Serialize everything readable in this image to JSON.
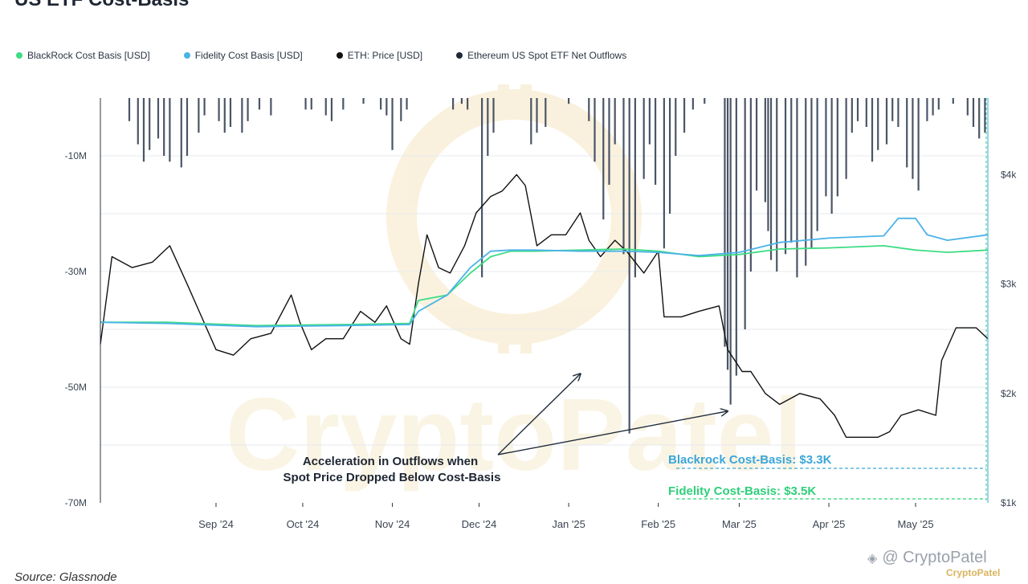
{
  "title": "US ETF Cost-Basis",
  "source": "Source: Glassnode",
  "watermark": {
    "center_text": "CryptoPatel",
    "corner_text": "@ CryptoPatel",
    "corner_brand": "CryptoPatel"
  },
  "legend": [
    {
      "label": "BlackRock Cost Basis [USD]",
      "color": "#3ddc84"
    },
    {
      "label": "Fidelity Cost Basis [USD]",
      "color": "#4ab3e8"
    },
    {
      "label": "ETH: Price [USD]",
      "color": "#111111"
    },
    {
      "label": "Ethereum US Spot ETF Net Outflows",
      "color": "#1e2a3a"
    }
  ],
  "annotations": {
    "arrow_note_line1": "Acceleration in Outflows when",
    "arrow_note_line2": "Spot Price Dropped Below Cost-Basis",
    "blackrock_label": "Blackrock Cost-Basis: $3.3K",
    "fidelity_label": "Fidelity Cost-Basis: $3.5K"
  },
  "chart_data": {
    "type": "line",
    "x_range": [
      "2024-07-23",
      "2025-05-26"
    ],
    "x_ticks": [
      "Sep '24",
      "Oct '24",
      "Nov '24",
      "Dec '24",
      "Jan '25",
      "Feb '25",
      "Mar '25",
      "Apr '25",
      "May '25"
    ],
    "y_left": {
      "label": "",
      "ticks": [
        "-10M",
        "-30M",
        "-50M",
        "-70M"
      ],
      "range": [
        0,
        -70
      ]
    },
    "y_right": {
      "label": "",
      "ticks": [
        "$4k",
        "$3k",
        "$2k",
        "$1k"
      ],
      "range": [
        1000,
        4700
      ]
    },
    "grid": true,
    "legend_position": "top-left",
    "series": [
      {
        "name": "ETH: Price [USD]",
        "axis": "right",
        "color": "#111111",
        "points": [
          [
            "2024-07-23",
            2450
          ],
          [
            "2024-07-27",
            3250
          ],
          [
            "2024-08-03",
            3150
          ],
          [
            "2024-08-10",
            3200
          ],
          [
            "2024-08-16",
            3350
          ],
          [
            "2024-08-22",
            3000
          ],
          [
            "2024-08-27",
            2700
          ],
          [
            "2024-09-01",
            2400
          ],
          [
            "2024-09-07",
            2350
          ],
          [
            "2024-09-13",
            2500
          ],
          [
            "2024-09-20",
            2550
          ],
          [
            "2024-09-27",
            2900
          ],
          [
            "2024-09-30",
            2650
          ],
          [
            "2024-10-04",
            2400
          ],
          [
            "2024-10-09",
            2500
          ],
          [
            "2024-10-15",
            2500
          ],
          [
            "2024-10-21",
            2750
          ],
          [
            "2024-10-26",
            2650
          ],
          [
            "2024-10-30",
            2800
          ],
          [
            "2024-11-04",
            2500
          ],
          [
            "2024-11-07",
            2450
          ],
          [
            "2024-11-10",
            3000
          ],
          [
            "2024-11-13",
            3450
          ],
          [
            "2024-11-17",
            3150
          ],
          [
            "2024-11-21",
            3100
          ],
          [
            "2024-11-26",
            3350
          ],
          [
            "2024-11-30",
            3650
          ],
          [
            "2024-12-05",
            3800
          ],
          [
            "2024-12-09",
            3850
          ],
          [
            "2024-12-14",
            4000
          ],
          [
            "2024-12-17",
            3900
          ],
          [
            "2024-12-21",
            3350
          ],
          [
            "2024-12-26",
            3450
          ],
          [
            "2024-12-31",
            3450
          ],
          [
            "2025-01-05",
            3650
          ],
          [
            "2025-01-08",
            3400
          ],
          [
            "2025-01-12",
            3250
          ],
          [
            "2025-01-17",
            3400
          ],
          [
            "2025-01-21",
            3300
          ],
          [
            "2025-01-27",
            3100
          ],
          [
            "2025-02-01",
            3300
          ],
          [
            "2025-02-03",
            2700
          ],
          [
            "2025-02-09",
            2700
          ],
          [
            "2025-02-15",
            2750
          ],
          [
            "2025-02-22",
            2800
          ],
          [
            "2025-02-25",
            2400
          ],
          [
            "2025-03-02",
            2200
          ],
          [
            "2025-03-05",
            2200
          ],
          [
            "2025-03-10",
            2000
          ],
          [
            "2025-03-15",
            1900
          ],
          [
            "2025-03-22",
            2000
          ],
          [
            "2025-03-29",
            1950
          ],
          [
            "2025-04-03",
            1800
          ],
          [
            "2025-04-07",
            1600
          ],
          [
            "2025-04-12",
            1600
          ],
          [
            "2025-04-18",
            1600
          ],
          [
            "2025-04-22",
            1650
          ],
          [
            "2025-04-26",
            1800
          ],
          [
            "2025-05-02",
            1850
          ],
          [
            "2025-05-08",
            1800
          ],
          [
            "2025-05-10",
            2300
          ],
          [
            "2025-05-15",
            2600
          ],
          [
            "2025-05-22",
            2600
          ],
          [
            "2025-05-26",
            2500
          ]
        ]
      },
      {
        "name": "BlackRock Cost Basis [USD]",
        "axis": "right",
        "color": "#3ddc84",
        "points": [
          [
            "2024-07-23",
            2650
          ],
          [
            "2024-08-15",
            2650
          ],
          [
            "2024-09-15",
            2620
          ],
          [
            "2024-10-15",
            2630
          ],
          [
            "2024-11-07",
            2640
          ],
          [
            "2024-11-10",
            2850
          ],
          [
            "2024-11-20",
            2900
          ],
          [
            "2024-11-28",
            3100
          ],
          [
            "2024-12-05",
            3250
          ],
          [
            "2024-12-12",
            3300
          ],
          [
            "2024-12-20",
            3300
          ],
          [
            "2025-01-05",
            3310
          ],
          [
            "2025-01-20",
            3320
          ],
          [
            "2025-02-01",
            3300
          ],
          [
            "2025-02-15",
            3250
          ],
          [
            "2025-03-01",
            3270
          ],
          [
            "2025-03-15",
            3320
          ],
          [
            "2025-04-01",
            3330
          ],
          [
            "2025-04-20",
            3350
          ],
          [
            "2025-05-01",
            3310
          ],
          [
            "2025-05-12",
            3290
          ],
          [
            "2025-05-26",
            3310
          ]
        ]
      },
      {
        "name": "Fidelity Cost Basis [USD]",
        "axis": "right",
        "color": "#4ab3e8",
        "points": [
          [
            "2024-07-23",
            2650
          ],
          [
            "2024-08-15",
            2640
          ],
          [
            "2024-09-15",
            2610
          ],
          [
            "2024-10-15",
            2620
          ],
          [
            "2024-11-07",
            2630
          ],
          [
            "2024-11-10",
            2750
          ],
          [
            "2024-11-20",
            2900
          ],
          [
            "2024-11-28",
            3150
          ],
          [
            "2024-12-05",
            3300
          ],
          [
            "2024-12-12",
            3310
          ],
          [
            "2024-12-20",
            3310
          ],
          [
            "2025-01-05",
            3300
          ],
          [
            "2025-01-20",
            3300
          ],
          [
            "2025-02-01",
            3290
          ],
          [
            "2025-02-15",
            3260
          ],
          [
            "2025-03-01",
            3290
          ],
          [
            "2025-03-15",
            3380
          ],
          [
            "2025-04-01",
            3420
          ],
          [
            "2025-04-20",
            3440
          ],
          [
            "2025-04-25",
            3600
          ],
          [
            "2025-05-01",
            3600
          ],
          [
            "2025-05-05",
            3450
          ],
          [
            "2025-05-12",
            3400
          ],
          [
            "2025-05-26",
            3450
          ]
        ]
      },
      {
        "name": "Ethereum US Spot ETF Net Outflows",
        "axis": "left",
        "color": "#4a5566",
        "kind": "bar",
        "points": [
          [
            "2024-08-02",
            -4
          ],
          [
            "2024-08-05",
            -8
          ],
          [
            "2024-08-07",
            -11
          ],
          [
            "2024-08-09",
            -9
          ],
          [
            "2024-08-12",
            -7
          ],
          [
            "2024-08-14",
            -10
          ],
          [
            "2024-08-16",
            -11
          ],
          [
            "2024-08-20",
            -12
          ],
          [
            "2024-08-22",
            -10
          ],
          [
            "2024-08-26",
            -6
          ],
          [
            "2024-08-28",
            -3
          ],
          [
            "2024-09-02",
            -4
          ],
          [
            "2024-09-04",
            -6
          ],
          [
            "2024-09-06",
            -5
          ],
          [
            "2024-09-10",
            -6
          ],
          [
            "2024-09-12",
            -4
          ],
          [
            "2024-09-16",
            -2
          ],
          [
            "2024-09-20",
            -3
          ],
          [
            "2024-10-02",
            -2
          ],
          [
            "2024-10-04",
            -2
          ],
          [
            "2024-10-09",
            -3
          ],
          [
            "2024-10-11",
            -4
          ],
          [
            "2024-10-15",
            -2
          ],
          [
            "2024-10-22",
            -1
          ],
          [
            "2024-10-28",
            -2
          ],
          [
            "2024-10-30",
            -3
          ],
          [
            "2024-11-01",
            -9
          ],
          [
            "2024-11-04",
            -4
          ],
          [
            "2024-11-06",
            -2
          ],
          [
            "2024-11-22",
            -2
          ],
          [
            "2024-11-25",
            -1
          ],
          [
            "2024-11-27",
            -2
          ],
          [
            "2024-12-02",
            -31
          ],
          [
            "2024-12-04",
            -10
          ],
          [
            "2024-12-06",
            -6
          ],
          [
            "2024-12-19",
            -8
          ],
          [
            "2024-12-21",
            -6
          ],
          [
            "2024-12-24",
            -5
          ],
          [
            "2025-01-01",
            -1
          ],
          [
            "2025-01-08",
            -4
          ],
          [
            "2025-01-10",
            -11
          ],
          [
            "2025-01-13",
            -21
          ],
          [
            "2025-01-15",
            -15
          ],
          [
            "2025-01-17",
            -8
          ],
          [
            "2025-01-20",
            -27
          ],
          [
            "2025-01-22",
            -58
          ],
          [
            "2025-01-24",
            -31
          ],
          [
            "2025-01-27",
            -14
          ],
          [
            "2025-01-29",
            -8
          ],
          [
            "2025-01-31",
            -15
          ],
          [
            "2025-02-03",
            -26
          ],
          [
            "2025-02-05",
            -20
          ],
          [
            "2025-02-07",
            -10
          ],
          [
            "2025-02-10",
            -6
          ],
          [
            "2025-02-13",
            -2
          ],
          [
            "2025-02-17",
            -1
          ],
          [
            "2025-02-24",
            -43
          ],
          [
            "2025-02-25",
            -47
          ],
          [
            "2025-02-26",
            -53
          ],
          [
            "2025-02-28",
            -48
          ],
          [
            "2025-03-03",
            -40
          ],
          [
            "2025-03-05",
            -30
          ],
          [
            "2025-03-07",
            -16
          ],
          [
            "2025-03-10",
            -18
          ],
          [
            "2025-03-11",
            -23
          ],
          [
            "2025-03-12",
            -28
          ],
          [
            "2025-03-14",
            -30
          ],
          [
            "2025-03-17",
            -27
          ],
          [
            "2025-03-19",
            -25
          ],
          [
            "2025-03-21",
            -31
          ],
          [
            "2025-03-24",
            -29
          ],
          [
            "2025-03-26",
            -26
          ],
          [
            "2025-03-28",
            -23
          ],
          [
            "2025-03-31",
            -17
          ],
          [
            "2025-04-02",
            -20
          ],
          [
            "2025-04-04",
            -17
          ],
          [
            "2025-04-07",
            -14
          ],
          [
            "2025-04-09",
            -6
          ],
          [
            "2025-04-11",
            -4
          ],
          [
            "2025-04-14",
            -5
          ],
          [
            "2025-04-16",
            -11
          ],
          [
            "2025-04-18",
            -9
          ],
          [
            "2025-04-21",
            -8
          ],
          [
            "2025-04-23",
            -4
          ],
          [
            "2025-04-25",
            -5
          ],
          [
            "2025-04-28",
            -12
          ],
          [
            "2025-04-30",
            -14
          ],
          [
            "2025-05-02",
            -16
          ],
          [
            "2025-05-05",
            -4
          ],
          [
            "2025-05-07",
            -3
          ],
          [
            "2025-05-09",
            -2
          ],
          [
            "2025-05-14",
            -1
          ],
          [
            "2025-05-19",
            -3
          ],
          [
            "2025-05-21",
            -5
          ],
          [
            "2025-05-23",
            -7
          ],
          [
            "2025-05-25",
            -6
          ]
        ]
      }
    ],
    "reference_lines": [
      {
        "label": "Blackrock Cost-Basis: $3.3K",
        "color": "#3aa6d8"
      },
      {
        "label": "Fidelity Cost-Basis: $3.5K",
        "color": "#2fcf7a"
      }
    ]
  }
}
